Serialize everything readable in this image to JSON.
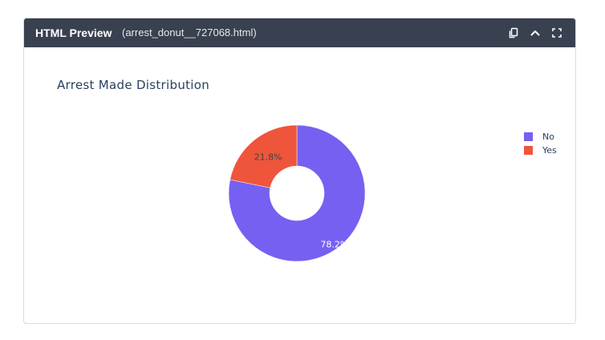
{
  "header": {
    "title": "HTML Preview",
    "filename": "(arrest_donut__727068.html)"
  },
  "icons": {
    "copy": "copy-icon",
    "collapse": "chevron-up-icon",
    "fullscreen": "fullscreen-icon"
  },
  "chart_data": {
    "type": "pie",
    "title": "Arrest Made Distribution",
    "hole": true,
    "legend_position": "right",
    "categories": [
      "No",
      "Yes"
    ],
    "values": [
      78.2,
      21.8
    ],
    "labels": [
      "78.2%",
      "21.8%"
    ],
    "colors": [
      "#7560f2",
      "#ef553b"
    ]
  }
}
